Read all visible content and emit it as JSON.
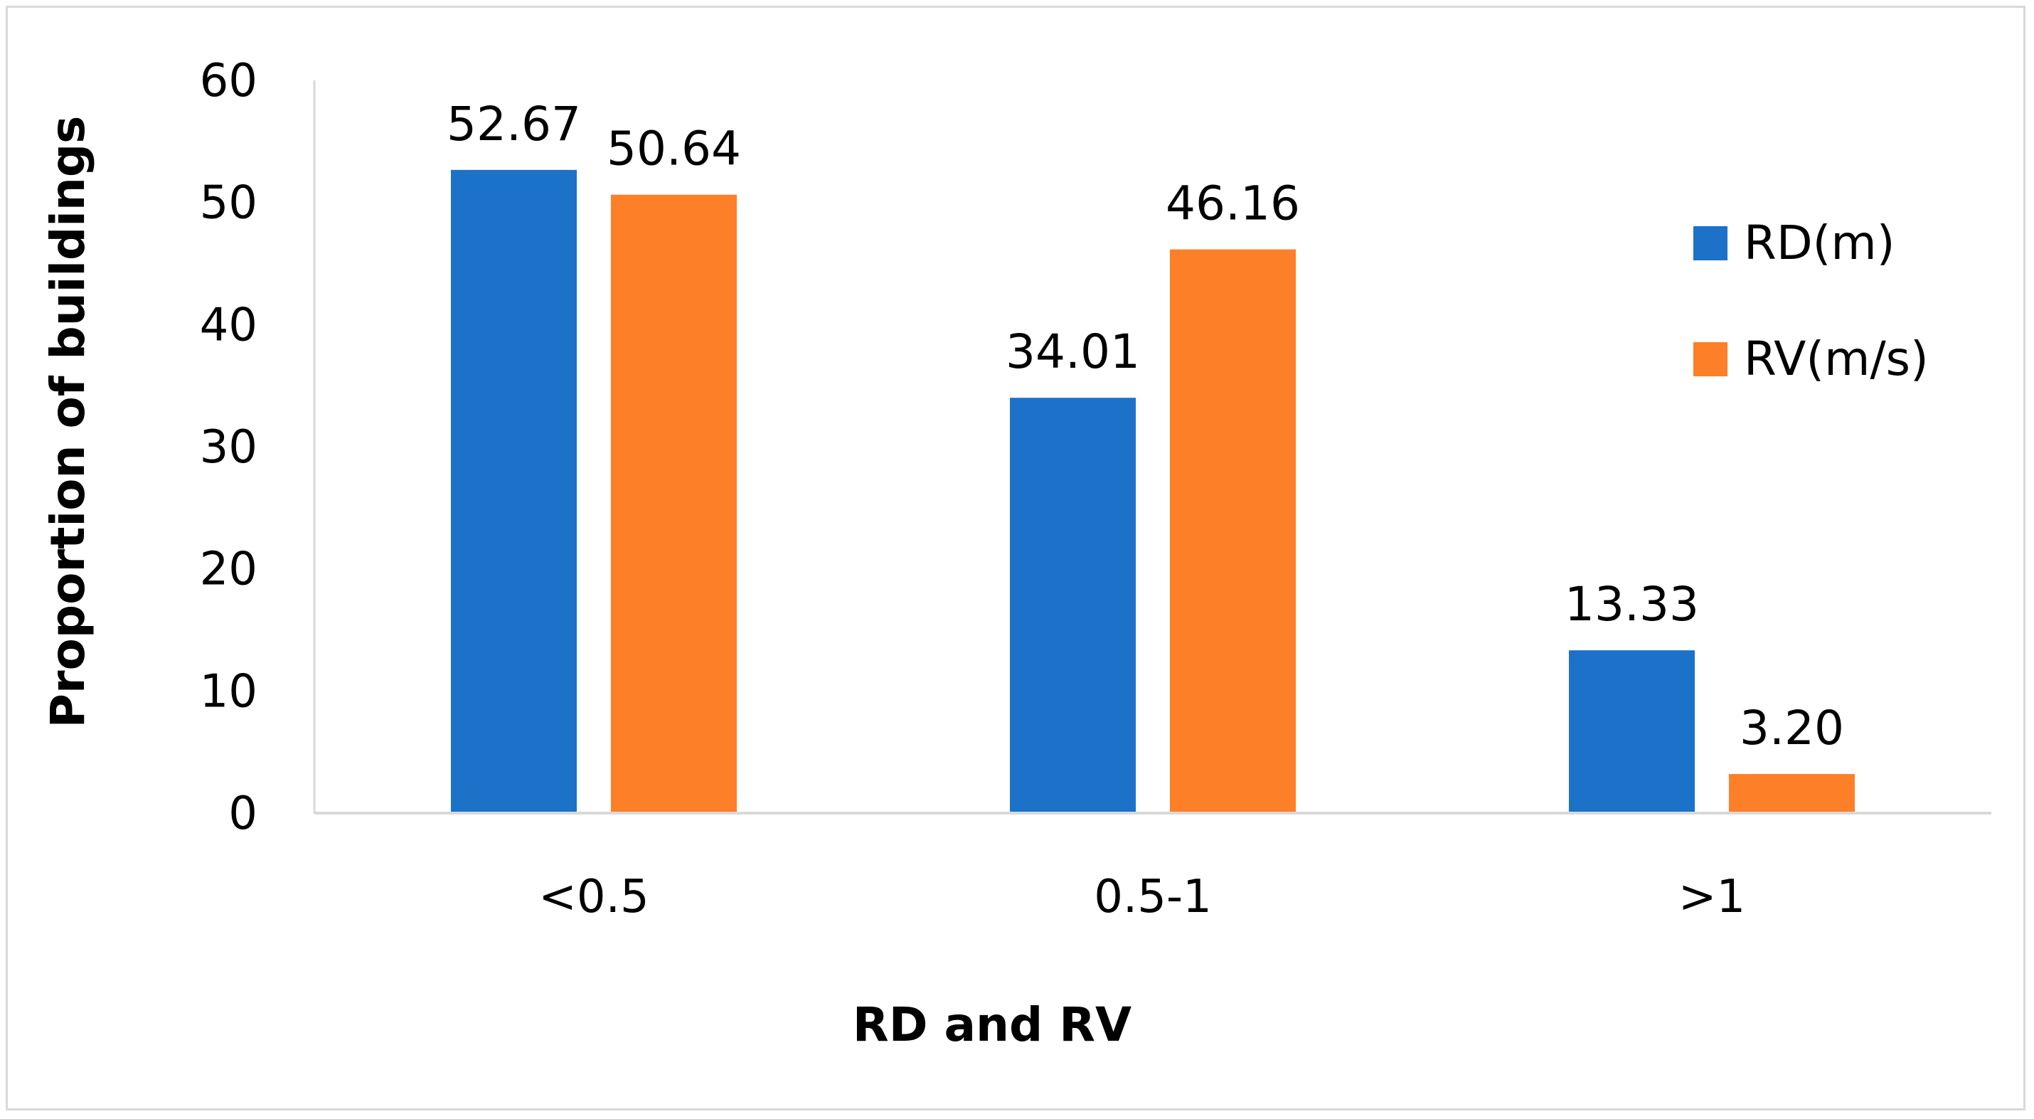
{
  "chart_data": {
    "type": "bar",
    "title": "",
    "xlabel": "RD and RV",
    "ylabel": "Proportion of buildings",
    "categories": [
      "<0.5",
      "0.5-1",
      ">1"
    ],
    "series": [
      {
        "name": "RD(m)",
        "color": "#1b72c8",
        "values": [
          52.67,
          34.01,
          13.33
        ],
        "labels": [
          "52.67",
          "34.01",
          "13.33"
        ]
      },
      {
        "name": "RV(m/s)",
        "color": "#fd7f28",
        "values": [
          50.64,
          46.16,
          3.2
        ],
        "labels": [
          "50.64",
          "46.16",
          "3.20"
        ]
      }
    ],
    "ylim": [
      0,
      60
    ],
    "yticks": [
      0,
      10,
      20,
      30,
      40,
      50,
      60
    ],
    "yticklabels": [
      "0",
      "10",
      "20",
      "30",
      "40",
      "50",
      "60"
    ],
    "grid": false,
    "legend_position": "right"
  }
}
